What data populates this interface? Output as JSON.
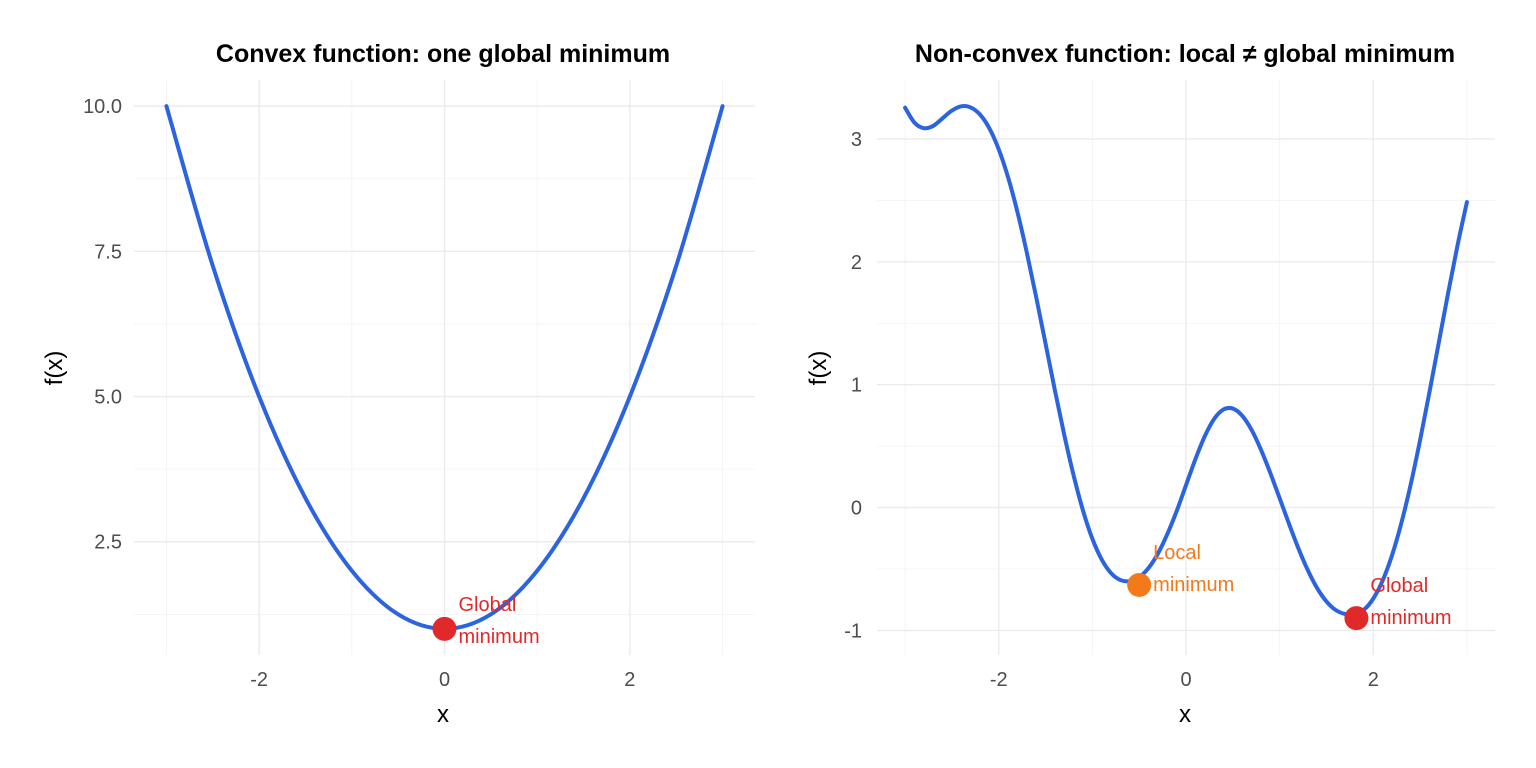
{
  "chart_data": [
    {
      "type": "line",
      "title": "Convex function: one global minimum",
      "xlabel": "x",
      "ylabel": "f(x)",
      "xlim": [
        -3,
        3
      ],
      "ylim": [
        1,
        10
      ],
      "x_ticks": [
        -2,
        0,
        2
      ],
      "y_ticks": [
        2.5,
        5.0,
        7.5,
        10.0
      ],
      "x_tick_labels": [
        "-2",
        "0",
        "2"
      ],
      "y_tick_labels": [
        "2.5",
        "5.0",
        "7.5",
        "10.0"
      ],
      "grid": true,
      "series": [
        {
          "color": "#2b63e0",
          "x": [
            -3.0,
            -2.5,
            -2.0,
            -1.5,
            -1.0,
            -0.5,
            0.0,
            0.5,
            1.0,
            1.5,
            2.0,
            2.5,
            3.0
          ],
          "y": [
            10.0,
            7.25,
            5.0,
            3.25,
            2.0,
            1.25,
            1.0,
            1.25,
            2.0,
            3.25,
            5.0,
            7.25,
            10.0
          ]
        }
      ],
      "points": [
        {
          "x": 0.0,
          "y": 1.0,
          "color": "#e02a2a",
          "label_lines": [
            "Global",
            "minimum"
          ]
        }
      ]
    },
    {
      "type": "line",
      "title": "Non-convex function: local ≠ global minimum",
      "xlabel": "x",
      "ylabel": "f(x)",
      "xlim": [
        -3,
        3
      ],
      "ylim": [
        -1,
        3.3
      ],
      "x_ticks": [
        -2,
        0,
        2
      ],
      "y_ticks": [
        -1,
        0,
        1,
        2,
        3
      ],
      "x_tick_labels": [
        "-2",
        "0",
        "2"
      ],
      "y_tick_labels": [
        "-1",
        "0",
        "1",
        "2",
        "3"
      ],
      "grid": true,
      "series": [
        {
          "color": "#2b63e0",
          "x": [
            -3.0,
            -2.9,
            -2.8,
            -2.7,
            -2.6,
            -2.5,
            -2.4,
            -2.3,
            -2.2,
            -2.1,
            -2.0,
            -1.9,
            -1.8,
            -1.7,
            -1.6,
            -1.5,
            -1.4,
            -1.3,
            -1.2,
            -1.1,
            -1.0,
            -0.9,
            -0.8,
            -0.7,
            -0.6,
            -0.5,
            -0.4,
            -0.3,
            -0.2,
            -0.1,
            0.0,
            0.1,
            0.2,
            0.3,
            0.4,
            0.5,
            0.6,
            0.7,
            0.8,
            0.9,
            1.0,
            1.1,
            1.2,
            1.3,
            1.4,
            1.5,
            1.6,
            1.7,
            1.8,
            1.9,
            2.0,
            2.1,
            2.2,
            2.3,
            2.4,
            2.5,
            2.6,
            2.7,
            2.8,
            2.9,
            3.0
          ],
          "y": [
            3.255,
            3.133,
            3.088,
            3.106,
            3.168,
            3.231,
            3.266,
            3.257,
            3.199,
            3.087,
            2.916,
            2.688,
            2.405,
            2.075,
            1.713,
            1.334,
            0.954,
            0.591,
            0.261,
            -0.024,
            -0.254,
            -0.423,
            -0.534,
            -0.59,
            -0.599,
            -0.567,
            -0.492,
            -0.375,
            -0.217,
            -0.029,
            0.182,
            0.393,
            0.58,
            0.721,
            0.798,
            0.806,
            0.748,
            0.633,
            0.472,
            0.282,
            0.076,
            -0.132,
            -0.331,
            -0.508,
            -0.655,
            -0.764,
            -0.835,
            -0.867,
            -0.872,
            -0.832,
            -0.741,
            -0.594,
            -0.389,
            -0.126,
            0.189,
            0.549,
            0.939,
            1.344,
            1.748,
            2.135,
            2.486
          ]
        }
      ],
      "points": [
        {
          "x": -0.5,
          "y": -0.63,
          "color": "#f27a1b",
          "label_lines": [
            "Local",
            "minimum"
          ]
        },
        {
          "x": 1.82,
          "y": -0.9,
          "color": "#e02a2a",
          "label_lines": [
            "Global",
            "minimum"
          ]
        }
      ]
    }
  ]
}
